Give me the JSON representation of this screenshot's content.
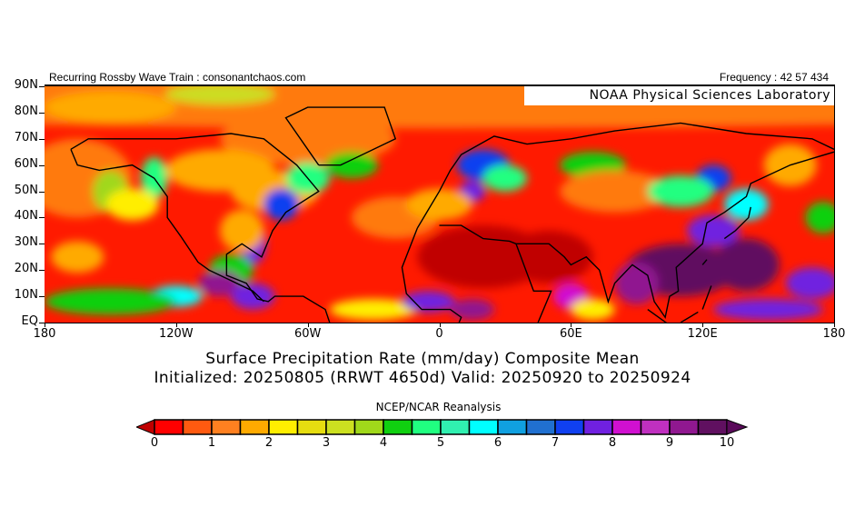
{
  "header": {
    "left_text": "Recurring Rossby Wave Train : consonantchaos.com",
    "right_text": "Frequency : 42 57 434",
    "lab_label": "NOAA Physical Sciences Laboratory"
  },
  "map": {
    "lat_labels": [
      "90N",
      "80N",
      "70N",
      "60N",
      "50N",
      "40N",
      "30N",
      "20N",
      "10N",
      "EQ"
    ],
    "lon_labels": [
      "180",
      "120W",
      "60W",
      "0",
      "60E",
      "120E",
      "180"
    ]
  },
  "titles": {
    "line1": "Surface Precipitation Rate (mm/day) Composite Mean",
    "line2": "Initialized: 20250805 (RRWT 4650d) Valid: 20250920 to 20250924",
    "source": "NCEP/NCAR Reanalysis"
  },
  "colorbar": {
    "labels": [
      "0",
      "1",
      "2",
      "3",
      "4",
      "5",
      "6",
      "7",
      "8",
      "9",
      "10"
    ],
    "under_color": "#c00000",
    "over_color": "#5a0a5a",
    "colors": [
      "#ff0000",
      "#ff5a10",
      "#ff8020",
      "#ffaa00",
      "#ffee00",
      "#e6dd10",
      "#cce020",
      "#a0d81a",
      "#10d010",
      "#20ff80",
      "#30f0b0",
      "#00ffff",
      "#10a0e0",
      "#2070d0",
      "#1040f0",
      "#7020e0",
      "#d010d0",
      "#c030c0",
      "#901890",
      "#601060"
    ],
    "min": 0,
    "max": 10,
    "step": 0.5
  }
}
